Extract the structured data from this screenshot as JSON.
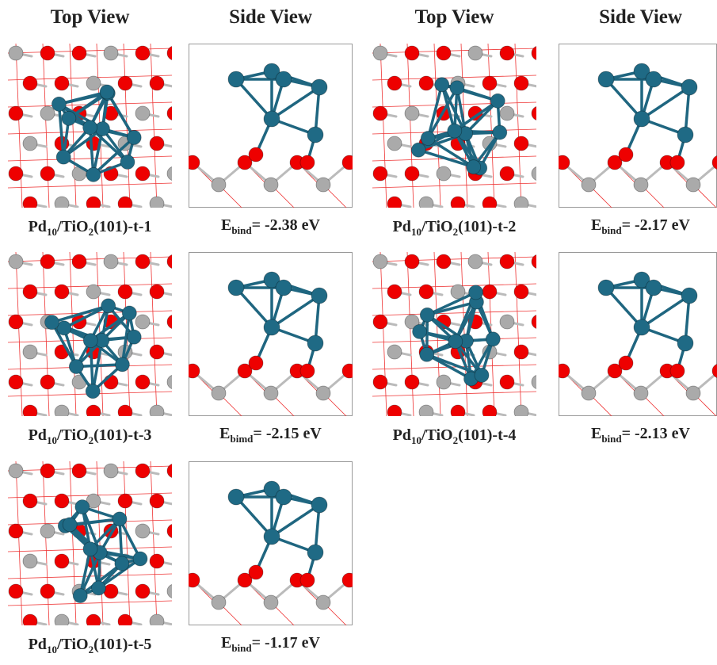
{
  "headers": [
    "Top View",
    "Side View",
    "Top View",
    "Side View"
  ],
  "panels": [
    {
      "structure": [
        "Pd",
        "10",
        "/TiO",
        "2",
        "(101)-t-1"
      ],
      "energy": [
        "E",
        "bind",
        "= -2.38 eV"
      ]
    },
    {
      "structure": [
        "Pd",
        "10",
        "/TiO",
        "2",
        "(101)-t-2"
      ],
      "energy": [
        "E",
        "bind",
        "= -2.17 eV"
      ]
    },
    {
      "structure": [
        "Pd",
        "10",
        "/TiO",
        "2",
        "(101)-t-3"
      ],
      "energy": [
        "E",
        "bimd",
        "= -2.15 eV"
      ]
    },
    {
      "structure": [
        "Pd",
        "10",
        "/TiO",
        "2",
        "(101)-t-4"
      ],
      "energy": [
        "E",
        "bind",
        "= -2.13 eV"
      ]
    },
    {
      "structure": [
        "Pd",
        "10",
        "/TiO",
        "2",
        "(101)-t-5"
      ],
      "energy": [
        "E",
        "bind",
        "= -1.17 eV"
      ]
    }
  ]
}
